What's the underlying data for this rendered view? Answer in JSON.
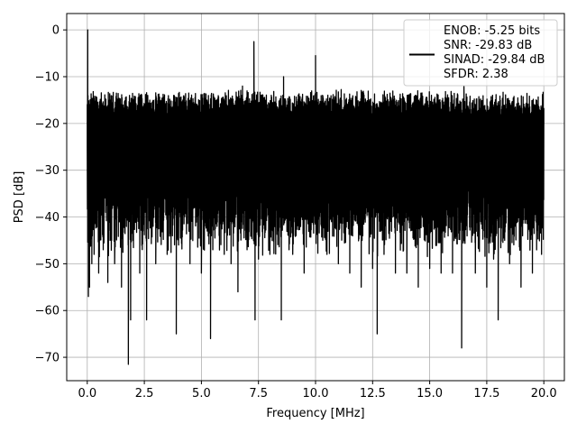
{
  "chart_data": {
    "type": "line",
    "title": "",
    "xlabel": "Frequency [MHz]",
    "ylabel": "PSD [dB]",
    "xlim": [
      -0.9,
      20.9
    ],
    "ylim": [
      -75,
      3.5
    ],
    "xticks": [
      0.0,
      2.5,
      5.0,
      7.5,
      10.0,
      12.5,
      15.0,
      17.5,
      20.0
    ],
    "xtick_labels": [
      "0.0",
      "2.5",
      "5.0",
      "7.5",
      "10.0",
      "12.5",
      "15.0",
      "17.5",
      "20.0"
    ],
    "yticks": [
      0,
      -10,
      -20,
      -30,
      -40,
      -50,
      -60,
      -70
    ],
    "ytick_labels": [
      "0",
      "−10",
      "−20",
      "−30",
      "−40",
      "−50",
      "−60",
      "−70"
    ],
    "grid": true,
    "legend_position": "top-right",
    "series": [
      {
        "name": "ENOB: -5.25 bits\nSNR: -29.83 dB\nSINAD: -29.84 dB\nSFDR: 2.38",
        "legend_lines": [
          "ENOB: -5.25 bits",
          "SNR: -29.83 dB",
          "SINAD: -29.84 dB",
          "SFDR: 2.38"
        ],
        "color": "#000000",
        "noise_floor_approx_db": [
          -45,
          -14
        ],
        "x": [
          0.0,
          0.02,
          0.05,
          0.1,
          0.15,
          0.2,
          0.3,
          0.5,
          0.7,
          0.9,
          1.0,
          1.2,
          1.5,
          1.8,
          1.85,
          1.9,
          2.0,
          2.3,
          2.6,
          2.65,
          3.0,
          3.5,
          3.9,
          4.0,
          4.5,
          5.0,
          5.4,
          5.5,
          6.0,
          6.3,
          6.6,
          6.8,
          7.0,
          7.3,
          7.35,
          7.5,
          8.0,
          8.5,
          8.6,
          9.0,
          9.5,
          10.0,
          10.5,
          11.0,
          11.5,
          12.0,
          12.5,
          12.7,
          13.0,
          13.5,
          14.0,
          14.5,
          15.0,
          15.5,
          16.0,
          16.4,
          16.5,
          17.0,
          17.5,
          17.8,
          18.0,
          18.5,
          19.0,
          19.5,
          19.9,
          20.0
        ],
        "y": [
          -25.0,
          0.0,
          -57.0,
          -55.0,
          -15.0,
          -50.0,
          -48.0,
          -52.0,
          -47.0,
          -54.0,
          -45.0,
          -50.0,
          -55.0,
          -71.5,
          -14.0,
          -62.0,
          -45.0,
          -52.0,
          -62.0,
          -14.0,
          -50.0,
          -48.0,
          -65.0,
          -46.0,
          -50.0,
          -52.0,
          -66.0,
          -47.0,
          -48.0,
          -50.0,
          -56.0,
          -12.0,
          -47.0,
          -2.5,
          -62.0,
          -49.0,
          -48.0,
          -62.0,
          -10.0,
          -48.0,
          -52.0,
          -5.5,
          -48.0,
          -50.0,
          -52.0,
          -55.0,
          -51.0,
          -65.0,
          -48.0,
          -52.0,
          -52.0,
          -55.0,
          -51.0,
          -52.0,
          -52.0,
          -68.0,
          -12.0,
          -52.0,
          -55.0,
          -49.0,
          -62.0,
          -50.0,
          -55.0,
          -52.0,
          -48.0,
          -20.0
        ]
      }
    ]
  }
}
